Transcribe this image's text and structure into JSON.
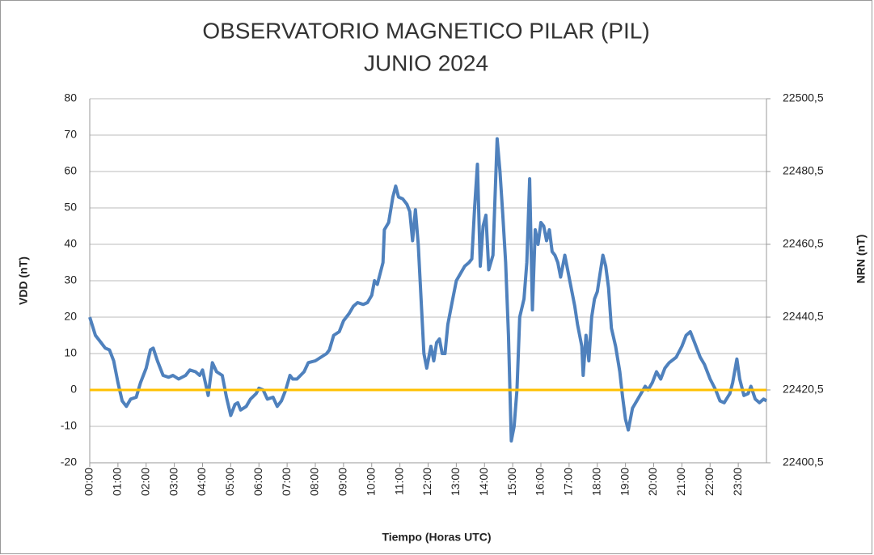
{
  "chart_data": {
    "type": "line",
    "title": "OBSERVATORIO MAGNETICO PILAR (PIL)",
    "subtitle": "JUNIO 2024",
    "x_label": "Tiempo (Horas UTC)",
    "y_label": "VDD (nT)",
    "y2_label": "NRN (nT)",
    "xlim": [
      0,
      24
    ],
    "xticks": [
      {
        "value": 0,
        "label": "00:00"
      },
      {
        "value": 1,
        "label": "01:00"
      },
      {
        "value": 2,
        "label": "02:00"
      },
      {
        "value": 3,
        "label": "03:00"
      },
      {
        "value": 4,
        "label": "04:00"
      },
      {
        "value": 5,
        "label": "05:00"
      },
      {
        "value": 6,
        "label": "06:00"
      },
      {
        "value": 7,
        "label": "07:00"
      },
      {
        "value": 8,
        "label": "08:00"
      },
      {
        "value": 9,
        "label": "09:00"
      },
      {
        "value": 10,
        "label": "10:00"
      },
      {
        "value": 11,
        "label": "11:00"
      },
      {
        "value": 12,
        "label": "12:00"
      },
      {
        "value": 13,
        "label": "13:00"
      },
      {
        "value": 14,
        "label": "14:00"
      },
      {
        "value": 15,
        "label": "15:00"
      },
      {
        "value": 16,
        "label": "16:00"
      },
      {
        "value": 17,
        "label": "17:00"
      },
      {
        "value": 18,
        "label": "18:00"
      },
      {
        "value": 19,
        "label": "19:00"
      },
      {
        "value": 20,
        "label": "20:00"
      },
      {
        "value": 21,
        "label": "21:00"
      },
      {
        "value": 22,
        "label": "22:00"
      },
      {
        "value": 23,
        "label": "23:00"
      }
    ],
    "ylim": [
      -20,
      80
    ],
    "yticks": [
      -20,
      -10,
      0,
      10,
      20,
      30,
      40,
      50,
      60,
      70,
      80
    ],
    "y2lim": [
      22400.5,
      22500.5
    ],
    "y2ticks": [
      {
        "value": 22400.5,
        "label": "22400,5"
      },
      {
        "value": 22420.5,
        "label": "22420,5"
      },
      {
        "value": 22440.5,
        "label": "22440,5"
      },
      {
        "value": 22460.5,
        "label": "22460,5"
      },
      {
        "value": 22480.5,
        "label": "22480,5"
      },
      {
        "value": 22500.5,
        "label": "22500,5"
      }
    ],
    "grid": true,
    "series": [
      {
        "color": "#4f81bd",
        "x": [
          0,
          0.2,
          0.4,
          0.55,
          0.7,
          0.85,
          1,
          1.15,
          1.3,
          1.45,
          1.65,
          1.8,
          2,
          2.15,
          2.25,
          2.4,
          2.6,
          2.8,
          2.95,
          3.15,
          3.4,
          3.55,
          3.75,
          3.9,
          4,
          4.1,
          4.2,
          4.35,
          4.5,
          4.7,
          4.85,
          5,
          5.15,
          5.25,
          5.35,
          5.55,
          5.7,
          5.9,
          6,
          6.15,
          6.3,
          6.5,
          6.65,
          6.8,
          6.95,
          7.1,
          7.2,
          7.35,
          7.6,
          7.75,
          8,
          8.2,
          8.4,
          8.5,
          8.65,
          8.85,
          9,
          9.2,
          9.35,
          9.5,
          9.7,
          9.85,
          10,
          10.1,
          10.2,
          10.4,
          10.45,
          10.6,
          10.75,
          10.85,
          10.95,
          11.1,
          11.25,
          11.35,
          11.45,
          11.55,
          11.65,
          11.75,
          11.85,
          11.95,
          12.1,
          12.2,
          12.3,
          12.4,
          12.5,
          12.6,
          12.7,
          12.85,
          13,
          13.15,
          13.3,
          13.45,
          13.55,
          13.65,
          13.75,
          13.85,
          13.95,
          14.05,
          14.15,
          14.3,
          14.45,
          14.55,
          14.65,
          14.75,
          14.85,
          14.95,
          15.05,
          15.15,
          15.25,
          15.4,
          15.5,
          15.6,
          15.7,
          15.8,
          15.9,
          16,
          16.1,
          16.2,
          16.3,
          16.4,
          16.5,
          16.6,
          16.7,
          16.85,
          16.95,
          17.05,
          17.2,
          17.3,
          17.45,
          17.5,
          17.6,
          17.7,
          17.8,
          17.9,
          18,
          18.1,
          18.2,
          18.3,
          18.4,
          18.5,
          18.65,
          18.8,
          18.9,
          19,
          19.1,
          19.25,
          19.4,
          19.55,
          19.7,
          19.8,
          19.95,
          20.1,
          20.25,
          20.4,
          20.55,
          20.8,
          21,
          21.15,
          21.3,
          21.45,
          21.65,
          21.8,
          22,
          22.2,
          22.35,
          22.5,
          22.7,
          22.8,
          22.95,
          23.05,
          23.2,
          23.35,
          23.45,
          23.6,
          23.75,
          23.9,
          24
        ],
        "values": [
          20,
          15,
          13,
          11.5,
          11,
          8,
          2,
          -3,
          -4.5,
          -2.5,
          -2,
          2,
          6,
          11,
          11.5,
          8,
          4,
          3.5,
          4,
          3,
          4,
          5.5,
          5,
          4,
          5.5,
          2,
          -1.5,
          7.5,
          5,
          4,
          -2,
          -7,
          -4,
          -3.5,
          -5.5,
          -4.5,
          -2.5,
          -1,
          0.5,
          0,
          -2.5,
          -2,
          -4.5,
          -3,
          0,
          4,
          3,
          3,
          5,
          7.5,
          8,
          9,
          10,
          11,
          15,
          16,
          19,
          21,
          23,
          24,
          23.5,
          24,
          26,
          30,
          29,
          35,
          44,
          46,
          53,
          56,
          53,
          52.5,
          51,
          49,
          41,
          49.5,
          40,
          25,
          10,
          6,
          12,
          8,
          13,
          14,
          10,
          10,
          18,
          24,
          30,
          32,
          34,
          35,
          36,
          50,
          62,
          34,
          45,
          48,
          33,
          37,
          69,
          60,
          48,
          35,
          15,
          -14,
          -10,
          0,
          20,
          25,
          35,
          58,
          22,
          44,
          40,
          46,
          45,
          41,
          44,
          38,
          37,
          35,
          31,
          37,
          33,
          29,
          23,
          18,
          12,
          4,
          15,
          8,
          20,
          25,
          27,
          32,
          37,
          34,
          28,
          17,
          12,
          5,
          -2,
          -8,
          -11,
          -5,
          -3,
          -1,
          1,
          0,
          2,
          5,
          3,
          6,
          7.5,
          9,
          12,
          15,
          16,
          13,
          9,
          7,
          3,
          0,
          -3,
          -3.5,
          -1,
          2,
          8.5,
          3,
          -1.5,
          -1,
          1,
          -2.5,
          -3.5,
          -2.5,
          -3
        ]
      },
      {
        "color": "#ffc000",
        "axis": "y2",
        "x": [
          0,
          24
        ],
        "values": [
          22420.5,
          22420.5
        ]
      }
    ]
  }
}
